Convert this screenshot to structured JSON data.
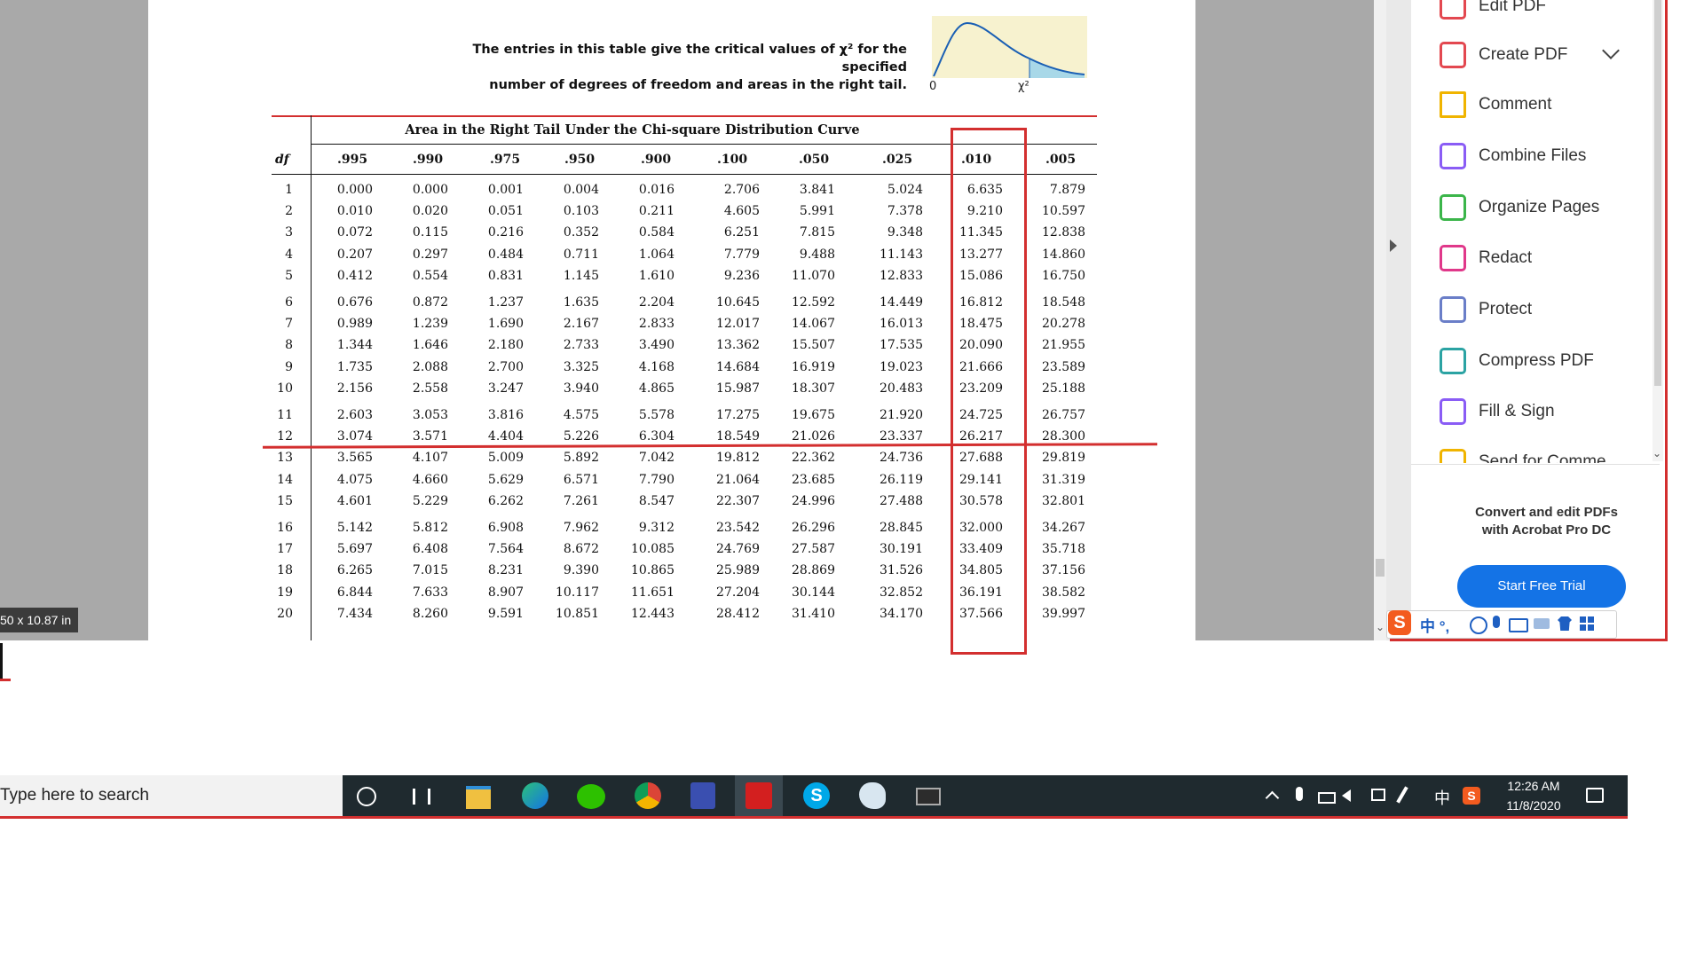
{
  "document": {
    "heading_line1": "The entries in this table give the critical values of χ² for the specified",
    "heading_line2": "number of degrees of freedom and areas in the right tail.",
    "curve_zero": "0",
    "curve_chi": "χ²",
    "table_title": "Area in the Right Tail Under the Chi-square Distribution Curve",
    "df_header": "df",
    "columns": [
      ".995",
      ".990",
      ".975",
      ".950",
      ".900",
      ".100",
      ".050",
      ".025",
      ".010",
      ".005"
    ],
    "rows": [
      {
        "df": "1",
        "values": [
          "0.000",
          "0.000",
          "0.001",
          "0.004",
          "0.016",
          "2.706",
          "3.841",
          "5.024",
          "6.635",
          "7.879"
        ]
      },
      {
        "df": "2",
        "values": [
          "0.010",
          "0.020",
          "0.051",
          "0.103",
          "0.211",
          "4.605",
          "5.991",
          "7.378",
          "9.210",
          "10.597"
        ]
      },
      {
        "df": "3",
        "values": [
          "0.072",
          "0.115",
          "0.216",
          "0.352",
          "0.584",
          "6.251",
          "7.815",
          "9.348",
          "11.345",
          "12.838"
        ]
      },
      {
        "df": "4",
        "values": [
          "0.207",
          "0.297",
          "0.484",
          "0.711",
          "1.064",
          "7.779",
          "9.488",
          "11.143",
          "13.277",
          "14.860"
        ]
      },
      {
        "df": "5",
        "values": [
          "0.412",
          "0.554",
          "0.831",
          "1.145",
          "1.610",
          "9.236",
          "11.070",
          "12.833",
          "15.086",
          "16.750"
        ]
      },
      {
        "df": "6",
        "values": [
          "0.676",
          "0.872",
          "1.237",
          "1.635",
          "2.204",
          "10.645",
          "12.592",
          "14.449",
          "16.812",
          "18.548"
        ]
      },
      {
        "df": "7",
        "values": [
          "0.989",
          "1.239",
          "1.690",
          "2.167",
          "2.833",
          "12.017",
          "14.067",
          "16.013",
          "18.475",
          "20.278"
        ]
      },
      {
        "df": "8",
        "values": [
          "1.344",
          "1.646",
          "2.180",
          "2.733",
          "3.490",
          "13.362",
          "15.507",
          "17.535",
          "20.090",
          "21.955"
        ]
      },
      {
        "df": "9",
        "values": [
          "1.735",
          "2.088",
          "2.700",
          "3.325",
          "4.168",
          "14.684",
          "16.919",
          "19.023",
          "21.666",
          "23.589"
        ]
      },
      {
        "df": "10",
        "values": [
          "2.156",
          "2.558",
          "3.247",
          "3.940",
          "4.865",
          "15.987",
          "18.307",
          "20.483",
          "23.209",
          "25.188"
        ]
      },
      {
        "df": "11",
        "values": [
          "2.603",
          "3.053",
          "3.816",
          "4.575",
          "5.578",
          "17.275",
          "19.675",
          "21.920",
          "24.725",
          "26.757"
        ]
      },
      {
        "df": "12",
        "values": [
          "3.074",
          "3.571",
          "4.404",
          "5.226",
          "6.304",
          "18.549",
          "21.026",
          "23.337",
          "26.217",
          "28.300"
        ]
      },
      {
        "df": "13",
        "values": [
          "3.565",
          "4.107",
          "5.009",
          "5.892",
          "7.042",
          "19.812",
          "22.362",
          "24.736",
          "27.688",
          "29.819"
        ]
      },
      {
        "df": "14",
        "values": [
          "4.075",
          "4.660",
          "5.629",
          "6.571",
          "7.790",
          "21.064",
          "23.685",
          "26.119",
          "29.141",
          "31.319"
        ]
      },
      {
        "df": "15",
        "values": [
          "4.601",
          "5.229",
          "6.262",
          "7.261",
          "8.547",
          "22.307",
          "24.996",
          "27.488",
          "30.578",
          "32.801"
        ]
      },
      {
        "df": "16",
        "values": [
          "5.142",
          "5.812",
          "6.908",
          "7.962",
          "9.312",
          "23.542",
          "26.296",
          "28.845",
          "32.000",
          "34.267"
        ]
      },
      {
        "df": "17",
        "values": [
          "5.697",
          "6.408",
          "7.564",
          "8.672",
          "10.085",
          "24.769",
          "27.587",
          "30.191",
          "33.409",
          "35.718"
        ]
      },
      {
        "df": "18",
        "values": [
          "6.265",
          "7.015",
          "8.231",
          "9.390",
          "10.865",
          "25.989",
          "28.869",
          "31.526",
          "34.805",
          "37.156"
        ]
      },
      {
        "df": "19",
        "values": [
          "6.844",
          "7.633",
          "8.907",
          "10.117",
          "11.651",
          "27.204",
          "30.144",
          "32.852",
          "36.191",
          "38.582"
        ]
      },
      {
        "df": "20",
        "values": [
          "7.434",
          "8.260",
          "9.591",
          "10.851",
          "12.443",
          "28.412",
          "31.410",
          "34.170",
          "37.566",
          "39.997"
        ]
      }
    ]
  },
  "viewer": {
    "page_size_badge": "50 x 10.87 in"
  },
  "tools": {
    "items": [
      {
        "label": "Edit PDF",
        "icon": "edit-pdf-icon"
      },
      {
        "label": "Create PDF",
        "icon": "create-pdf-icon"
      },
      {
        "label": "Comment",
        "icon": "comment-icon"
      },
      {
        "label": "Combine Files",
        "icon": "combine-files-icon"
      },
      {
        "label": "Organize Pages",
        "icon": "organize-pages-icon"
      },
      {
        "label": "Redact",
        "icon": "redact-icon"
      },
      {
        "label": "Protect",
        "icon": "protect-icon"
      },
      {
        "label": "Compress PDF",
        "icon": "compress-pdf-icon"
      },
      {
        "label": "Fill & Sign",
        "icon": "fill-sign-icon"
      },
      {
        "label": "Send for Comme",
        "icon": "send-for-comment-icon"
      }
    ],
    "promo_line1": "Convert and edit PDFs",
    "promo_line2": "with Acrobat Pro DC",
    "trial_button": "Start Free Trial",
    "ime_chars": "中 °,"
  },
  "taskbar": {
    "search_placeholder": "Type here to search",
    "tray_ime": "中",
    "time": "12:26 AM",
    "date": "11/8/2020"
  },
  "colors": {
    "annotation_red": "#d32f2f",
    "acrobat_blue": "#1473e6",
    "taskbar_bg": "#1f2a2f"
  }
}
